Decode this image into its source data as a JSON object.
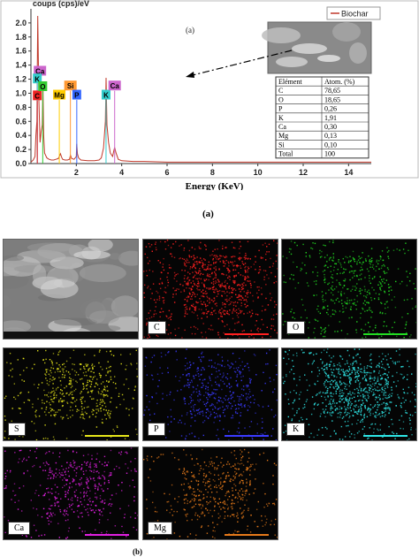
{
  "panel_a_label": "(a)",
  "panel_b_label": "(b)",
  "chart_data": {
    "type": "line",
    "ylabel": "coups (cps)/eV",
    "xlabel": "Energy (KeV)",
    "inset_label": "(a)",
    "legend": {
      "entries": [
        "Biochar"
      ],
      "placement": "top-right",
      "color": "#c0392b"
    },
    "xlim": [
      0,
      15
    ],
    "ylim": [
      0,
      2.2
    ],
    "x_ticks": [
      "2",
      "4",
      "6",
      "8",
      "10",
      "12",
      "14"
    ],
    "y_ticks": [
      "0.0",
      "0.2",
      "0.4",
      "0.6",
      "0.8",
      "1.0",
      "1.2",
      "1.4",
      "1.6",
      "1.8",
      "2.0"
    ],
    "grid": false,
    "series": [
      {
        "name": "Biochar",
        "x": [
          0.0,
          0.1,
          0.18,
          0.22,
          0.26,
          0.3,
          0.35,
          0.4,
          0.45,
          0.5,
          0.53,
          0.56,
          0.6,
          0.7,
          0.8,
          0.9,
          1.0,
          1.1,
          1.2,
          1.25,
          1.3,
          1.35,
          1.4,
          1.5,
          1.6,
          1.7,
          1.74,
          1.8,
          1.9,
          2.0,
          2.02,
          2.05,
          2.1,
          2.2,
          2.5,
          2.8,
          3.0,
          3.1,
          3.2,
          3.28,
          3.31,
          3.35,
          3.42,
          3.5,
          3.6,
          3.65,
          3.69,
          3.75,
          3.85,
          4.0,
          4.5,
          5.0,
          6.0,
          7.0,
          8.0,
          9.0,
          10.0,
          11.0,
          12.0,
          13.0,
          14.0,
          15.0
        ],
        "y": [
          0.02,
          0.05,
          0.1,
          0.4,
          0.6,
          2.1,
          0.9,
          0.3,
          0.45,
          0.55,
          1.1,
          0.4,
          0.15,
          0.08,
          0.06,
          0.05,
          0.05,
          0.06,
          0.07,
          0.1,
          0.14,
          0.09,
          0.06,
          0.05,
          0.05,
          0.06,
          0.12,
          0.07,
          0.06,
          0.1,
          0.28,
          0.14,
          0.08,
          0.05,
          0.04,
          0.04,
          0.05,
          0.08,
          0.22,
          0.6,
          1.22,
          0.55,
          0.3,
          0.15,
          0.1,
          0.18,
          0.23,
          0.15,
          0.06,
          0.04,
          0.03,
          0.03,
          0.02,
          0.02,
          0.02,
          0.02,
          0.02,
          0.02,
          0.02,
          0.02,
          0.02,
          0.02
        ]
      }
    ],
    "peak_labels": [
      {
        "text": "Ca",
        "x": 0.28,
        "y": 1.32,
        "color": "#cc66cc"
      },
      {
        "text": "K",
        "x": 0.28,
        "y": 1.21,
        "color": "#33cccc"
      },
      {
        "text": "C",
        "x": 0.28,
        "y": 0.97,
        "color": "#ee2222"
      },
      {
        "text": "O",
        "x": 0.52,
        "y": 1.1,
        "color": "#33cc33"
      },
      {
        "text": "Mg",
        "x": 1.25,
        "y": 0.98,
        "color": "#ffcc00"
      },
      {
        "text": "Si",
        "x": 1.74,
        "y": 1.11,
        "color": "#ff9933"
      },
      {
        "text": "P",
        "x": 2.02,
        "y": 0.98,
        "color": "#3366ff"
      },
      {
        "text": "K",
        "x": 3.31,
        "y": 0.98,
        "color": "#33cccc"
      },
      {
        "text": "Ca",
        "x": 3.69,
        "y": 1.11,
        "color": "#cc66cc"
      }
    ],
    "composition_table": {
      "headers": [
        "Elément",
        "Atom. (%)"
      ],
      "rows": [
        [
          "C",
          "78,65"
        ],
        [
          "O",
          "18,65"
        ],
        [
          "P",
          "0,26"
        ],
        [
          "K",
          "1,91"
        ],
        [
          "Ca",
          "0,30"
        ],
        [
          "Mg",
          "0,13"
        ],
        [
          "Si",
          "0,10"
        ],
        [
          "Total",
          "100"
        ]
      ]
    }
  },
  "maps": [
    {
      "label": "",
      "color": "#bbbbbb",
      "kind": "sem"
    },
    {
      "label": "C",
      "color": "#ff2020",
      "kind": "map"
    },
    {
      "label": "O",
      "color": "#22dd22",
      "kind": "map"
    },
    {
      "label": "S",
      "color": "#e6e61a",
      "kind": "map"
    },
    {
      "label": "P",
      "color": "#3a3aff",
      "kind": "map"
    },
    {
      "label": "K",
      "color": "#2ee6e6",
      "kind": "map"
    },
    {
      "label": "Ca",
      "color": "#e020e0",
      "kind": "map"
    },
    {
      "label": "Mg",
      "color": "#e67a1a",
      "kind": "map"
    }
  ]
}
